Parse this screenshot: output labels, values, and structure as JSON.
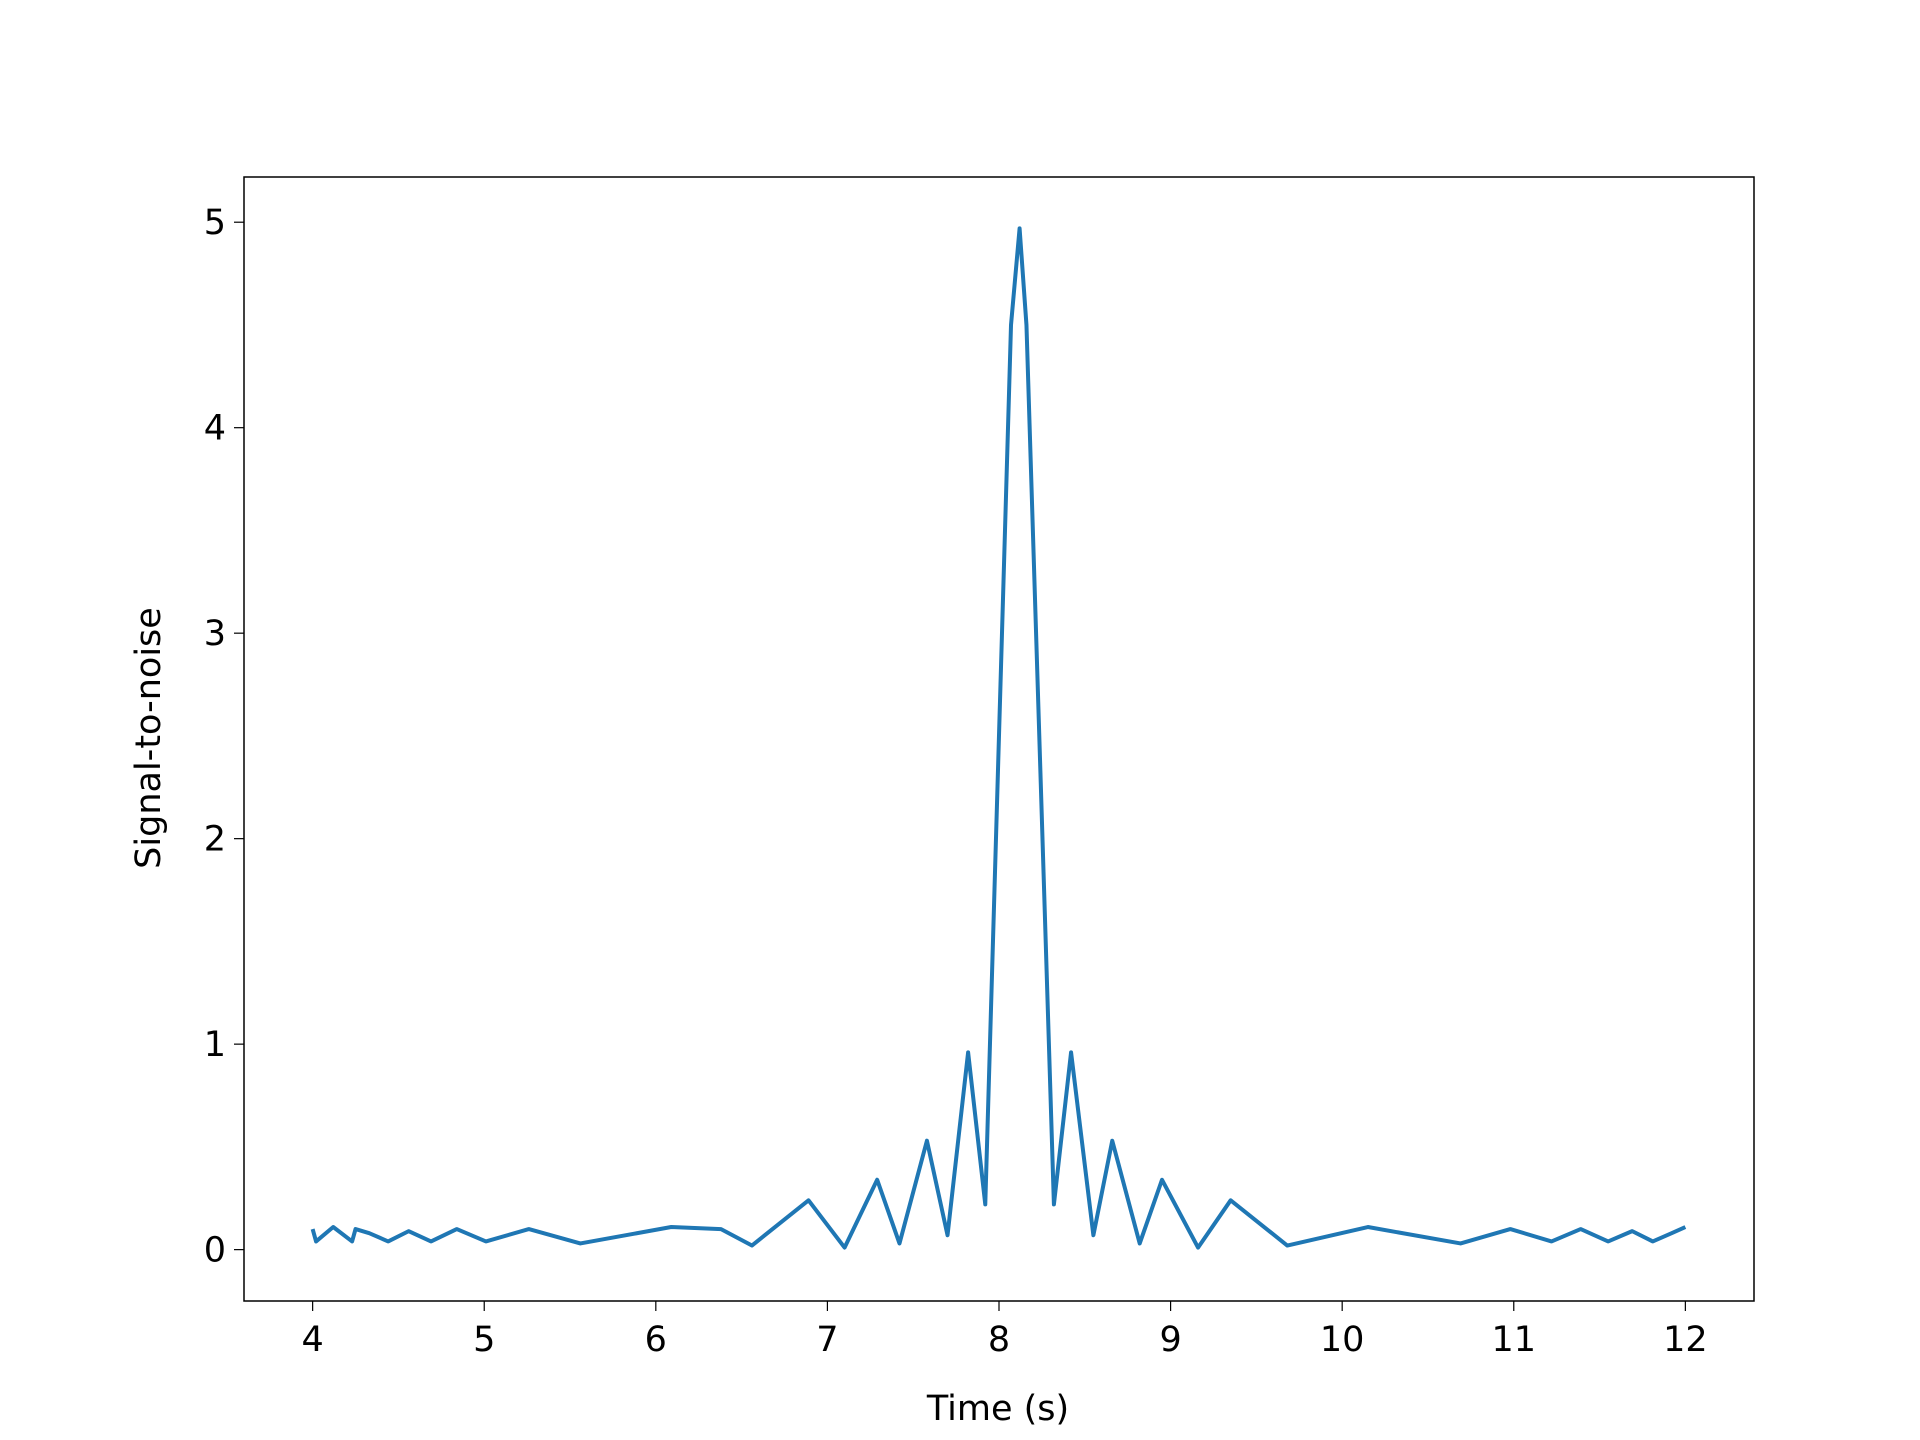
{
  "chart_data": {
    "type": "line",
    "xlabel": "Time (s)",
    "ylabel": "Signal-to-noise",
    "x": [
      4.0,
      4.02,
      4.12,
      4.23,
      4.25,
      4.33,
      4.44,
      4.56,
      4.69,
      4.84,
      5.01,
      5.26,
      5.56,
      6.09,
      6.38,
      6.56,
      6.89,
      7.1,
      7.29,
      7.42,
      7.58,
      7.7,
      7.82,
      7.92,
      8.07,
      8.12,
      8.16,
      8.32,
      8.42,
      8.55,
      8.66,
      8.82,
      8.95,
      9.16,
      9.35,
      9.68,
      10.15,
      10.69,
      10.98,
      11.22,
      11.39,
      11.55,
      11.69,
      11.81,
      11.92,
      12.0
    ],
    "series": [
      {
        "name": "Signal-to-noise",
        "color": "#1f77b4",
        "values": [
          0.1,
          0.04,
          0.11,
          0.04,
          0.1,
          0.08,
          0.04,
          0.09,
          0.04,
          0.1,
          0.04,
          0.1,
          0.03,
          0.11,
          0.1,
          0.02,
          0.24,
          0.01,
          0.34,
          0.03,
          0.53,
          0.07,
          0.96,
          0.22,
          4.5,
          4.97,
          4.5,
          0.22,
          0.96,
          0.07,
          0.53,
          0.03,
          0.34,
          0.01,
          0.24,
          0.02,
          0.11,
          0.03,
          0.1,
          0.04,
          0.1,
          0.04,
          0.09,
          0.04,
          0.08,
          0.11
        ]
      }
    ],
    "xlim": [
      3.6,
      12.4
    ],
    "xticks": [
      4,
      5,
      6,
      7,
      8,
      9,
      10,
      11,
      12
    ],
    "ylim": [
      -0.25,
      5.22
    ],
    "yticks": [
      0,
      1,
      2,
      3,
      4,
      5
    ]
  }
}
